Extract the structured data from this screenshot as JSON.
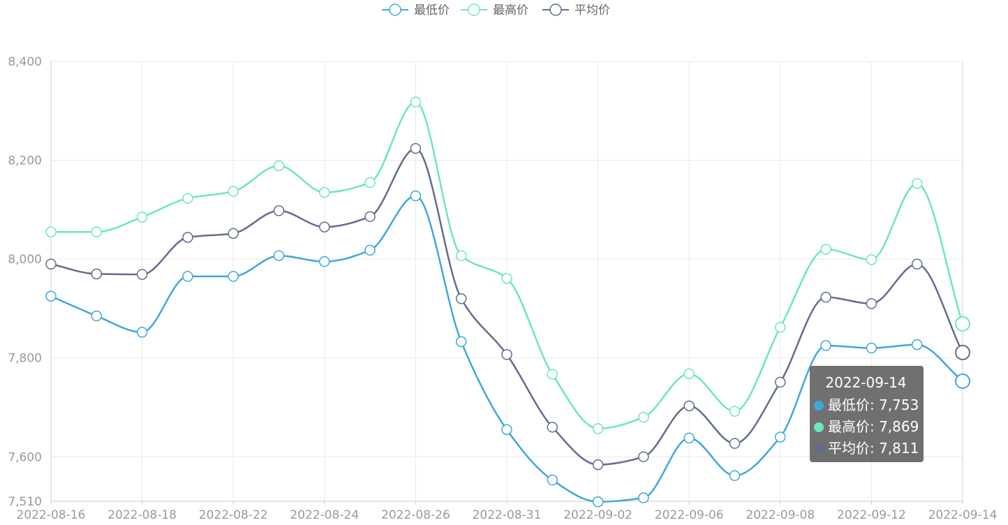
{
  "chart_data": {
    "type": "line",
    "title": "",
    "xlabel": "",
    "ylabel": "",
    "categories": [
      "2022-08-16",
      "2022-08-17",
      "2022-08-18",
      "2022-08-19",
      "2022-08-22",
      "2022-08-23",
      "2022-08-24",
      "2022-08-25",
      "2022-08-26",
      "2022-08-29",
      "2022-08-31",
      "2022-09-01",
      "2022-09-02",
      "2022-09-05",
      "2022-09-06",
      "2022-09-07",
      "2022-09-08",
      "2022-09-09",
      "2022-09-12",
      "2022-09-13",
      "2022-09-14"
    ],
    "tick_labels": [
      "2022-08-16",
      "2022-08-18",
      "2022-08-22",
      "2022-08-24",
      "2022-08-26",
      "2022-08-31",
      "2022-09-02",
      "2022-09-06",
      "2022-09-08",
      "2022-09-12",
      "2022-09-14"
    ],
    "y_ticks": [
      "7,510",
      "7,600",
      "7,800",
      "8,000",
      "8,200",
      "8,400"
    ],
    "ylim": [
      7510,
      8400
    ],
    "grid": true,
    "legend_position": "top-center",
    "series": [
      {
        "name": "最低价",
        "color": "#3fa7dc",
        "values": [
          7925,
          7885,
          7852,
          7965,
          7965,
          8007,
          7995,
          8018,
          8128,
          7833,
          7655,
          7553,
          7509,
          7517,
          7638,
          7562,
          7640,
          7825,
          7820,
          7827,
          7753
        ]
      },
      {
        "name": "最高价",
        "color": "#6be6c1",
        "values": [
          8055,
          8055,
          8085,
          8123,
          8137,
          8189,
          8135,
          8155,
          8318,
          8007,
          7961,
          7767,
          7657,
          7680,
          7768,
          7692,
          7862,
          8020,
          7999,
          8153,
          7869
        ]
      },
      {
        "name": "平均价",
        "color": "#626c91",
        "values": [
          7990,
          7970,
          7969,
          8044,
          8052,
          8098,
          8065,
          8086,
          8224,
          7920,
          7807,
          7660,
          7584,
          7600,
          7703,
          7627,
          7751,
          7923,
          7910,
          7990,
          7811
        ]
      }
    ]
  },
  "legend": {
    "items": [
      {
        "label": "最低价",
        "color": "#3fa7dc"
      },
      {
        "label": "最高价",
        "color": "#6be6c1"
      },
      {
        "label": "平均价",
        "color": "#626c91"
      }
    ]
  },
  "tooltip": {
    "date": "2022-09-14",
    "rows": [
      {
        "text": "最低价: 7,753",
        "color": "#3fa7dc"
      },
      {
        "text": "最高价: 7,869",
        "color": "#6be6c1"
      },
      {
        "text": "平均价: 7,811",
        "color": "#626c91"
      }
    ]
  }
}
